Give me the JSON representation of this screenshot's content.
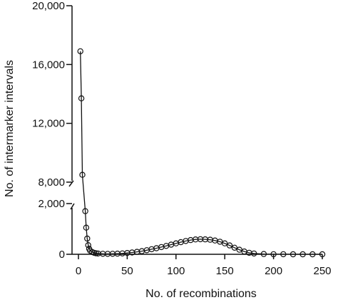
{
  "chart_data": {
    "type": "scatter",
    "title": "",
    "xlabel": "No. of recombinations",
    "ylabel": "No. of intermarker intervals",
    "xlim": [
      0,
      250
    ],
    "x_ticks": [
      0,
      50,
      100,
      150,
      200,
      250
    ],
    "x_tick_labels": [
      "0",
      "50",
      "100",
      "150",
      "200",
      "250"
    ],
    "y_axis_broken": true,
    "y_segments": [
      {
        "range": [
          0,
          2000
        ],
        "ticks": [
          0,
          2000
        ],
        "tick_labels": [
          "0",
          "2,000"
        ]
      },
      {
        "range": [
          8000,
          20000
        ],
        "ticks": [
          8000,
          12000,
          16000,
          20000
        ],
        "tick_labels": [
          "8,000",
          "12,000",
          "16,000",
          "20,000"
        ]
      }
    ],
    "grid": false,
    "legend": "none",
    "series": [
      {
        "marker": "open-circle",
        "line": true,
        "x": [
          2,
          3,
          4,
          7,
          8,
          9,
          10,
          11,
          12,
          14,
          16,
          18,
          20,
          25,
          30,
          35,
          40,
          45,
          50,
          55,
          60,
          65,
          70,
          75,
          80,
          85,
          90,
          95,
          100,
          105,
          110,
          115,
          120,
          125,
          130,
          135,
          140,
          145,
          150,
          155,
          160,
          165,
          170,
          175,
          180,
          190,
          200,
          210,
          220,
          230,
          240,
          250
        ],
        "y": [
          16900,
          13700,
          8500,
          1700,
          1050,
          620,
          360,
          220,
          140,
          90,
          60,
          40,
          30,
          20,
          18,
          20,
          25,
          35,
          50,
          70,
          95,
          125,
          160,
          200,
          240,
          285,
          330,
          380,
          430,
          480,
          525,
          560,
          585,
          595,
          590,
          575,
          545,
          495,
          430,
          350,
          260,
          180,
          110,
          60,
          30,
          10,
          4,
          2,
          1,
          0,
          0,
          0
        ]
      }
    ]
  }
}
